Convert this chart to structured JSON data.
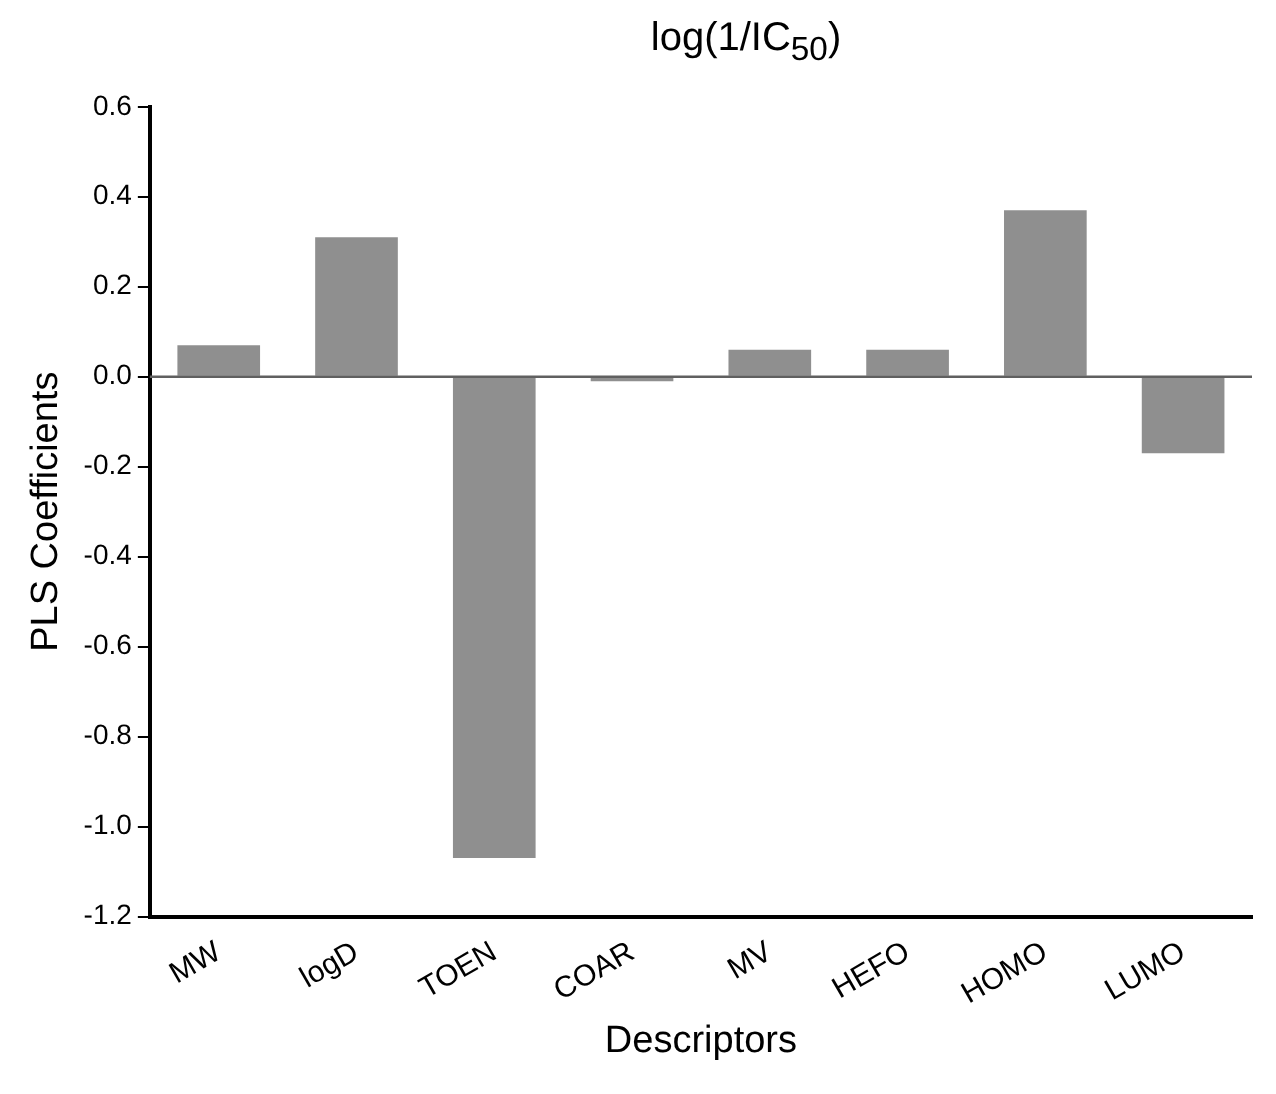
{
  "chart_data": {
    "type": "bar",
    "title": "log(1/IC$_{50}$)",
    "xlabel": "Descriptors",
    "ylabel": "PLS Coefficients",
    "categories": [
      "MW",
      "logD",
      "TOEN",
      "COAR",
      "MV",
      "HEFO",
      "HOMO",
      "LUMO"
    ],
    "values": [
      0.07,
      0.31,
      -1.07,
      -0.01,
      0.06,
      0.06,
      0.37,
      -0.17
    ],
    "color": "#8f8f8f",
    "ylim": [
      -1.2,
      0.6
    ],
    "yticks": [
      {
        "value": -1.2,
        "label": "-1.2"
      },
      {
        "value": -1.0,
        "label": "-1.0"
      },
      {
        "value": -0.8,
        "label": "-0.8"
      },
      {
        "value": -0.6,
        "label": "-0.6"
      },
      {
        "value": -0.4,
        "label": "-0.4"
      },
      {
        "value": -0.2,
        "label": "-0.2"
      },
      {
        "value": 0,
        "label": "0.0"
      },
      {
        "value": 0.2,
        "label": "0.2"
      },
      {
        "value": 0.4,
        "label": "0.4"
      },
      {
        "value": 0.6,
        "label": "0.6"
      }
    ],
    "ref_lines": [
      {
        "axis": "y",
        "value": 0,
        "color": "#606060"
      }
    ],
    "grid": false,
    "legend": false
  }
}
